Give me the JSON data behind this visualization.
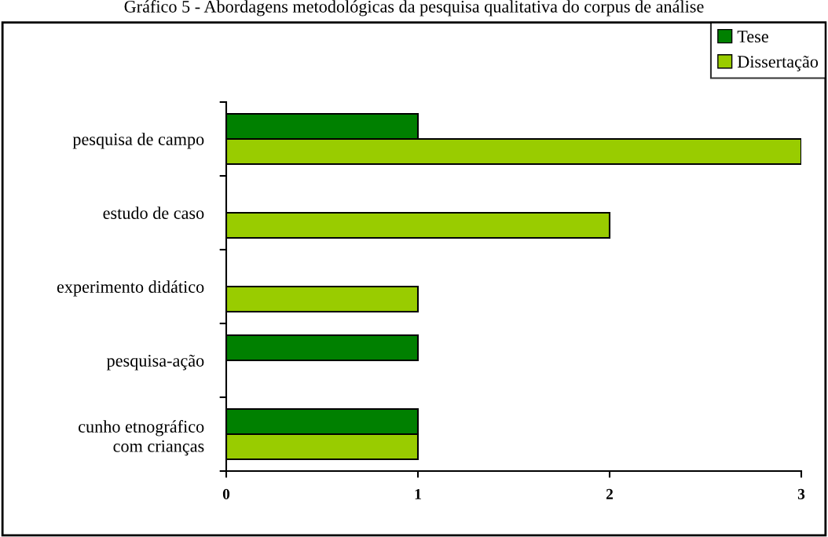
{
  "chart_data": {
    "type": "bar",
    "orientation": "horizontal",
    "title": "Gráfico 5 - Abordagens metodológicas da pesquisa qualitativa do corpus de análise",
    "categories": [
      "pesquisa de campo",
      "estudo de caso",
      "experimento didático",
      "pesquisa-ação",
      "cunho etnográfico\ncom crianças"
    ],
    "series": [
      {
        "name": "Tese",
        "color": "#008000",
        "values": [
          1,
          null,
          null,
          1,
          1
        ]
      },
      {
        "name": "Dissertação",
        "color": "#99cc00",
        "values": [
          3,
          2,
          1,
          null,
          1
        ]
      }
    ],
    "xlim": [
      0,
      3
    ],
    "xticks": [
      0,
      1,
      2,
      3
    ],
    "grid": false,
    "legend": "top right"
  }
}
